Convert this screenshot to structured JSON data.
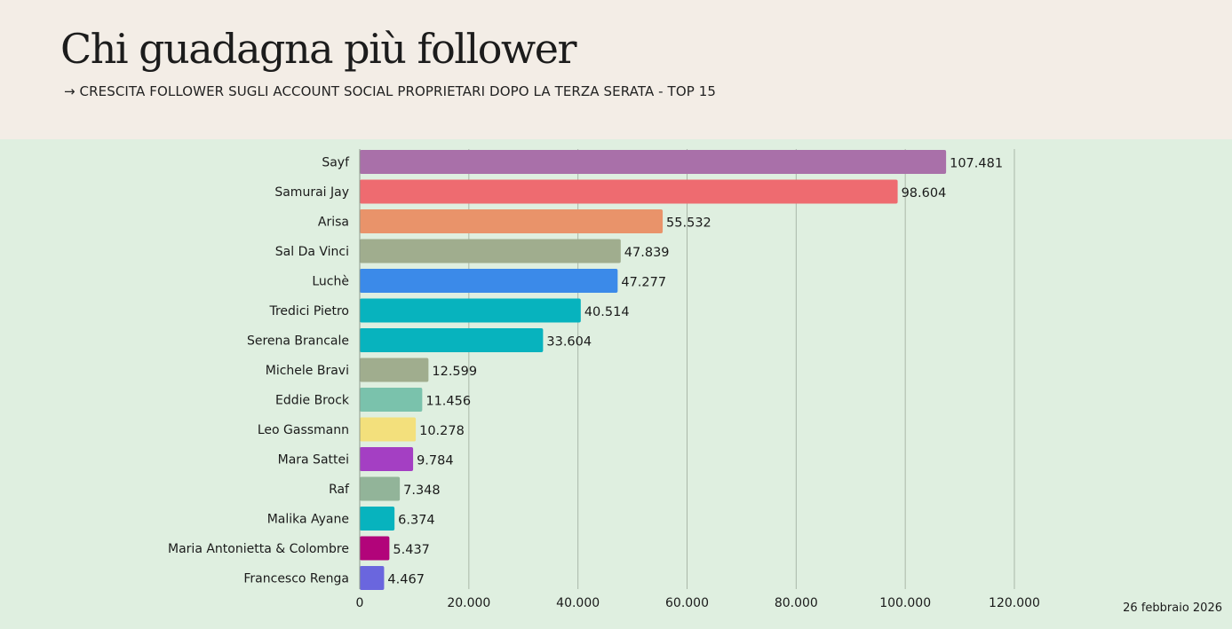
{
  "header": {
    "title": "Chi guadagna più follower",
    "subtitle": "→ CRESCITA FOLLOWER SUGLI ACCOUNT SOCIAL PROPRIETARI DOPO LA TERZA SERATA - TOP 15"
  },
  "footer": {
    "date": "26 febbraio 2026"
  },
  "chart_data": {
    "type": "bar",
    "orientation": "horizontal",
    "title": "Chi guadagna più follower",
    "subtitle": "→ CRESCITA FOLLOWER SUGLI ACCOUNT SOCIAL PROPRIETARI DOPO LA TERZA SERATA - TOP 15",
    "xlabel": "",
    "ylabel": "",
    "xlim": [
      0,
      120000
    ],
    "grid": true,
    "xticks": [
      0,
      20000,
      40000,
      60000,
      80000,
      100000,
      120000
    ],
    "xtick_labels": [
      "0",
      "20.000",
      "40.000",
      "60.000",
      "80.000",
      "100.000",
      "120.000"
    ],
    "categories": [
      "Sayf",
      "Samurai Jay",
      "Arisa",
      "Sal Da Vinci",
      "Luchè",
      "Tredici Pietro",
      "Serena Brancale",
      "Michele Bravi",
      "Eddie Brock",
      "Leo Gassmann",
      "Mara Sattei",
      "Raf",
      "Malika Ayane",
      "Maria Antonietta & Colombre",
      "Francesco Renga"
    ],
    "values": [
      107481,
      98604,
      55532,
      47839,
      47277,
      40514,
      33604,
      12599,
      11456,
      10278,
      9784,
      7348,
      6374,
      5437,
      4467
    ],
    "value_labels": [
      "107.481",
      "98.604",
      "55.532",
      "47.839",
      "47.277",
      "40.514",
      "33.604",
      "12.599",
      "11.456",
      "10.278",
      "9.784",
      "7.348",
      "6.374",
      "5.437",
      "4.467"
    ],
    "colors": [
      "#a970a9",
      "#ee6b70",
      "#e9936a",
      "#a0ad8e",
      "#3b8ae9",
      "#07b3be",
      "#07b3be",
      "#a0ad8e",
      "#7ac2ac",
      "#f3e07c",
      "#a43fc3",
      "#92b499",
      "#07b3be",
      "#b2047a",
      "#6a66de"
    ]
  }
}
